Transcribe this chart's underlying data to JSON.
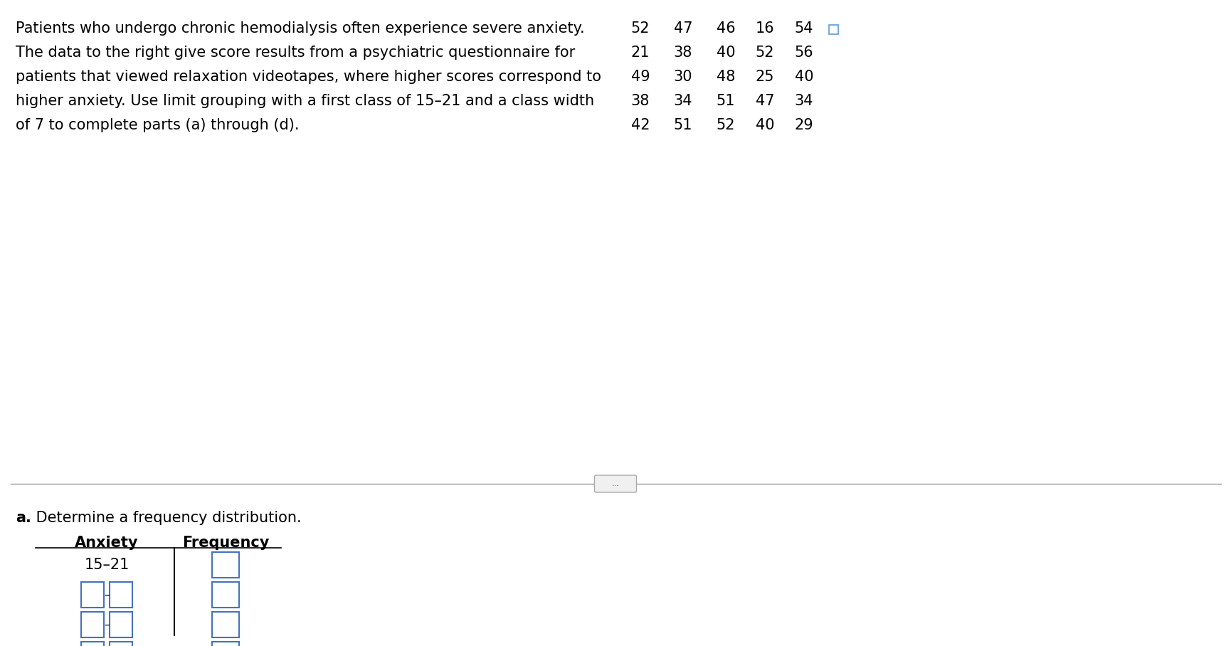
{
  "background_color": "#ffffff",
  "paragraph_lines": [
    "Patients who undergo chronic hemodialysis often experience severe anxiety.",
    "The data to the right give score results from a psychiatric questionnaire for",
    "patients that viewed relaxation videotapes, where higher scores correspond to",
    "higher anxiety. Use limit grouping with a first class of 15–21 and a class width",
    "of 7 to complete parts (a) through (d)."
  ],
  "data_table": [
    [
      52,
      47,
      46,
      16,
      54
    ],
    [
      21,
      38,
      40,
      52,
      56
    ],
    [
      49,
      30,
      48,
      25,
      40
    ],
    [
      38,
      34,
      51,
      47,
      34
    ],
    [
      42,
      51,
      52,
      40,
      29
    ]
  ],
  "separator_text": "...",
  "part_label": "a.",
  "part_text": " Determine a frequency distribution.",
  "table_col1_header": "Anxiety",
  "table_col2_header": "Frequency",
  "first_row_label": "15–21",
  "num_blank_rows": 5,
  "box_color": "#4472C4",
  "text_color": "#000000",
  "font_size_main": 15,
  "font_size_table": 15
}
